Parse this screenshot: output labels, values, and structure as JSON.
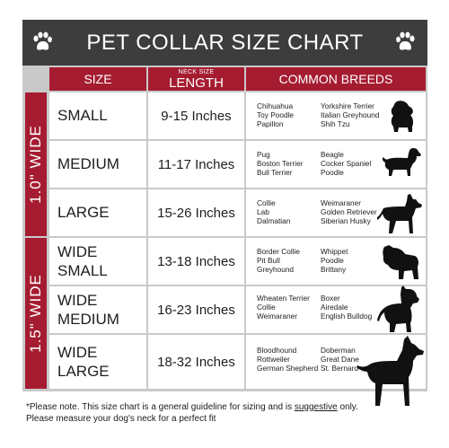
{
  "title": "PET COLLAR SIZE CHART",
  "columns": {
    "size": "SIZE",
    "length_small": "NECK SIZE",
    "length": "LENGTH",
    "breeds": "COMMON BREEDS"
  },
  "bands": {
    "narrow": "1.0\" WIDE",
    "wide": "1.5\" WIDE"
  },
  "rows": [
    {
      "size": "SMALL",
      "length": "9-15  Inches",
      "breeds_left": [
        "Chihuahua",
        "Toy Poodle",
        "Papillon"
      ],
      "breeds_right": [
        "Yorkshire Terrier",
        "Italian Greyhound",
        "Shih Tzu"
      ],
      "dog_icon": "shih-tzu-silhouette-icon"
    },
    {
      "size": "MEDIUM",
      "length": "11-17 Inches",
      "breeds_left": [
        "Pug",
        "Boston Terrier",
        "Bull Terrier"
      ],
      "breeds_right": [
        "Beagle",
        "Cocker Spaniel",
        "Poodle"
      ],
      "dog_icon": "dachshund-silhouette-icon"
    },
    {
      "size": "LARGE",
      "length": "15-26 Inches",
      "breeds_left": [
        "Collie",
        "Lab",
        "Dalmatian"
      ],
      "breeds_right": [
        "Weimaraner",
        "Golden Retriever",
        "Siberian Husky"
      ],
      "dog_icon": "shepherd-silhouette-icon"
    },
    {
      "size_line1": "WIDE",
      "size_line2": "SMALL",
      "length": "13-18 Inches",
      "breeds_left": [
        "Border Collie",
        "Pit Bull",
        "Greyhound"
      ],
      "breeds_right": [
        "Whippet",
        "Poodle",
        "Brittany"
      ],
      "dog_icon": "bulldog-silhouette-icon"
    },
    {
      "size_line1": "WIDE",
      "size_line2": "MEDIUM",
      "length": "16-23 Inches",
      "breeds_left": [
        "Wheaten Terrier",
        "Collie",
        "Weimaraner"
      ],
      "breeds_right": [
        "Boxer",
        "Airedale",
        "English Bulldog"
      ],
      "dog_icon": "pitbull-silhouette-icon"
    },
    {
      "size_line1": "WIDE",
      "size_line2": "LARGE",
      "length": "18-32 Inches",
      "breeds_left": [
        "Bloodhound",
        "Rottweiler",
        "German Shepherd"
      ],
      "breeds_right": [
        "Doberman",
        "Great Dane",
        "St. Bernard"
      ],
      "dog_icon": "doberman-silhouette-icon"
    }
  ],
  "note": {
    "part1": "*Please note. This size chart is a general guideline for sizing and is ",
    "emphasis": "suggestive",
    "part2": " only.",
    "line2": "Please measure your dog's neck for a perfect fit"
  },
  "colors": {
    "header_bg": "#3d3d3d",
    "accent_red": "#a51c30",
    "grid_gray": "#c9c9c9"
  }
}
